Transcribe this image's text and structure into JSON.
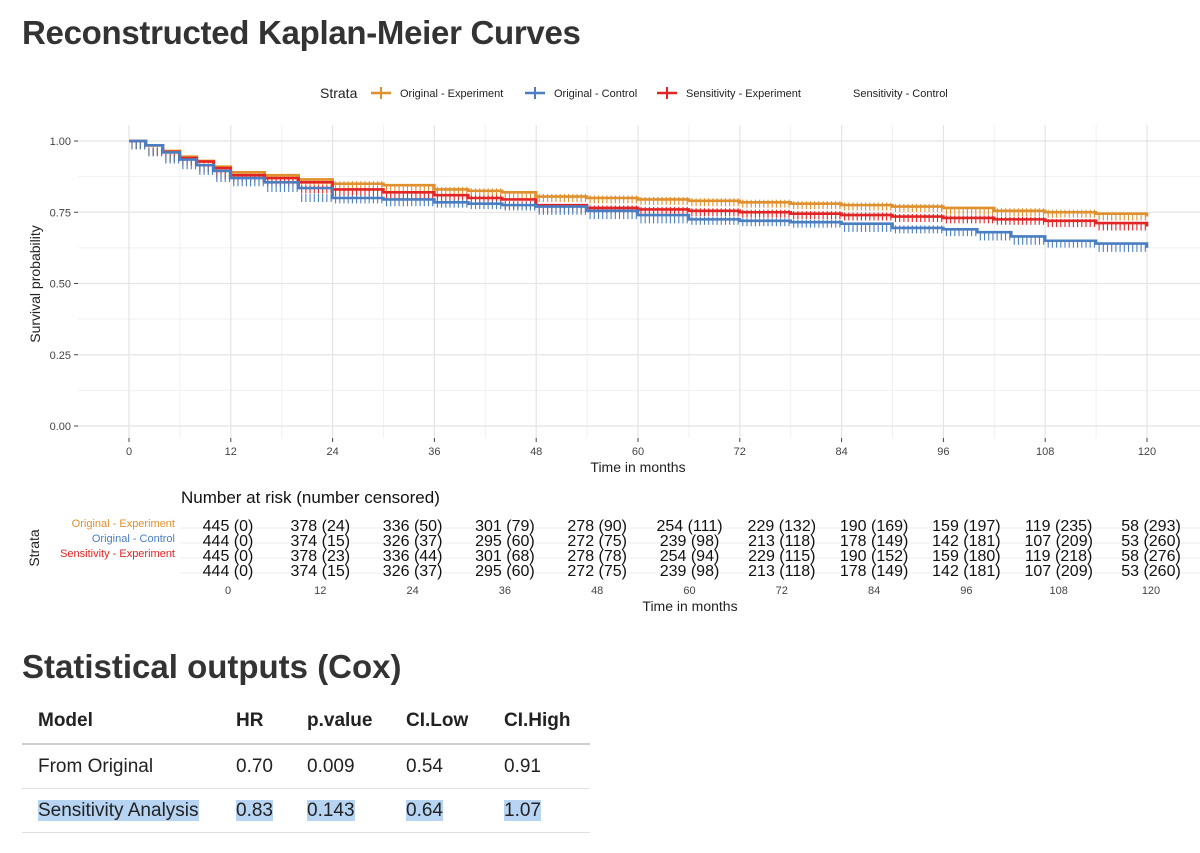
{
  "title": "Reconstructed Kaplan-Meier Curves",
  "legend": {
    "title": "Strata",
    "entries": [
      {
        "label": "Original - Experiment",
        "color": "#e0902c"
      },
      {
        "label": "Original - Control",
        "color": "#4a7ec2"
      },
      {
        "label": "Sensitivity - Experiment",
        "color": "#e32424"
      },
      {
        "label": "Sensitivity - Control",
        "color": ""
      }
    ]
  },
  "chart_data": [
    {
      "type": "line",
      "title": "Reconstructed Kaplan-Meier Curves",
      "xlabel": "Time in months",
      "ylabel": "Survival probability",
      "xlim": [
        0,
        120
      ],
      "ylim": [
        0,
        1
      ],
      "x_ticks": [
        "0",
        "12",
        "24",
        "36",
        "48",
        "60",
        "72",
        "84",
        "96",
        "108",
        "120"
      ],
      "y_ticks": [
        "0.00",
        "0.25",
        "0.50",
        "0.75",
        "1.00"
      ],
      "grid": true,
      "series": [
        {
          "name": "Original - Experiment",
          "color": "#e0902c",
          "x": [
            0,
            2,
            4,
            6,
            8,
            10,
            12,
            16,
            20,
            24,
            30,
            36,
            40,
            44,
            48,
            54,
            60,
            66,
            72,
            78,
            84,
            90,
            96,
            102,
            108,
            114,
            120
          ],
          "y": [
            1.0,
            0.985,
            0.965,
            0.945,
            0.93,
            0.91,
            0.89,
            0.88,
            0.865,
            0.85,
            0.845,
            0.83,
            0.825,
            0.82,
            0.805,
            0.8,
            0.795,
            0.79,
            0.785,
            0.78,
            0.775,
            0.77,
            0.765,
            0.755,
            0.75,
            0.745,
            0.735
          ]
        },
        {
          "name": "Sensitivity - Experiment",
          "color": "#e32424",
          "x": [
            0,
            2,
            4,
            6,
            8,
            10,
            12,
            16,
            20,
            24,
            30,
            36,
            40,
            44,
            48,
            54,
            60,
            66,
            72,
            78,
            84,
            90,
            96,
            102,
            108,
            114,
            120
          ],
          "y": [
            1.0,
            0.985,
            0.962,
            0.94,
            0.928,
            0.905,
            0.88,
            0.87,
            0.855,
            0.83,
            0.82,
            0.81,
            0.8,
            0.795,
            0.775,
            0.765,
            0.76,
            0.755,
            0.75,
            0.745,
            0.74,
            0.735,
            0.73,
            0.725,
            0.72,
            0.712,
            0.7
          ]
        },
        {
          "name": "Original - Control",
          "color": "#4a7ec2",
          "x": [
            0,
            2,
            4,
            6,
            8,
            10,
            12,
            16,
            20,
            24,
            30,
            36,
            40,
            44,
            48,
            54,
            60,
            66,
            72,
            78,
            84,
            90,
            96,
            100,
            104,
            108,
            114,
            120
          ],
          "y": [
            1.0,
            0.985,
            0.96,
            0.935,
            0.915,
            0.895,
            0.87,
            0.855,
            0.835,
            0.8,
            0.795,
            0.785,
            0.78,
            0.775,
            0.77,
            0.755,
            0.74,
            0.725,
            0.72,
            0.715,
            0.71,
            0.695,
            0.69,
            0.68,
            0.665,
            0.65,
            0.64,
            0.625
          ]
        }
      ]
    }
  ],
  "risk_table": {
    "title": "Number at risk (number censored)",
    "strata_label": "Strata",
    "xlabel": "Time in months",
    "times": [
      "0",
      "12",
      "24",
      "36",
      "48",
      "60",
      "72",
      "84",
      "96",
      "108",
      "120"
    ],
    "rows": [
      {
        "name": "Original - Experiment",
        "color": "#e0902c",
        "values": [
          "445 (0)",
          "378 (24)",
          "336 (50)",
          "301 (79)",
          "278 (90)",
          "254 (111)",
          "229 (132)",
          "190 (169)",
          "159 (197)",
          "119 (235)",
          "58 (293)"
        ]
      },
      {
        "name": "Original - Control",
        "color": "#4a7ec2",
        "values": [
          "444 (0)",
          "374 (15)",
          "326 (37)",
          "295 (60)",
          "272 (75)",
          "239 (98)",
          "213 (118)",
          "178 (149)",
          "142 (181)",
          "107 (209)",
          "53 (260)"
        ]
      },
      {
        "name": "Sensitivity - Experiment",
        "color": "#e32424",
        "values": [
          "445 (0)",
          "378 (23)",
          "336 (44)",
          "301 (68)",
          "278 (78)",
          "254 (94)",
          "229 (115)",
          "190 (152)",
          "159 (180)",
          "119 (218)",
          "58 (276)"
        ]
      },
      {
        "name": "",
        "color": "#000000",
        "values": [
          "444 (0)",
          "374 (15)",
          "326 (37)",
          "295 (60)",
          "272 (75)",
          "239 (98)",
          "213 (118)",
          "178 (149)",
          "142 (181)",
          "107 (209)",
          "53 (260)"
        ]
      }
    ]
  },
  "stats": {
    "title": "Statistical outputs (Cox)",
    "headers": [
      "Model",
      "HR",
      "p.value",
      "CI.Low",
      "CI.High"
    ],
    "rows": [
      {
        "model": "From Original",
        "hr": "0.70",
        "p": "0.009",
        "low": "0.54",
        "high": "0.91"
      },
      {
        "model": "Sensitivity Analysis",
        "hr": "0.83",
        "p": "0.143",
        "low": "0.64",
        "high": "1.07"
      }
    ]
  }
}
